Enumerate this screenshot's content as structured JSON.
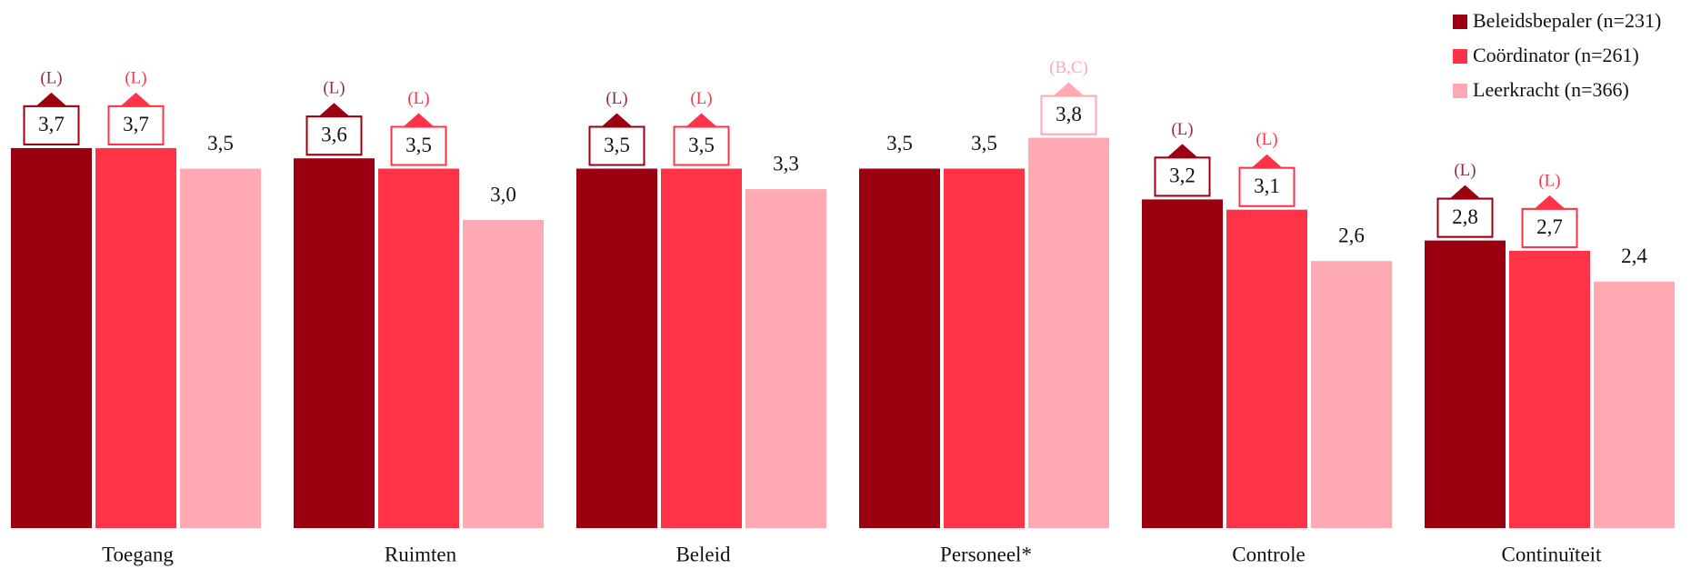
{
  "chart_data": {
    "type": "bar",
    "categories": [
      "Toegang",
      "Ruimten",
      "Beleid",
      "Personeel*",
      "Controle",
      "Continuïteit"
    ],
    "series": [
      {
        "name": "Beleidsbepaler (n=231)",
        "color": "#9b0011",
        "values": [
          3.7,
          3.6,
          3.5,
          3.5,
          3.2,
          2.8
        ],
        "value_labels": [
          "3,7",
          "3,6",
          "3,5",
          "3,5",
          "3,2",
          "2,8"
        ],
        "annotations": [
          "(L)",
          "(L)",
          "(L)",
          null,
          "(L)",
          "(L)"
        ]
      },
      {
        "name": "Coördinator (n=261)",
        "color": "#ff3347",
        "values": [
          3.7,
          3.5,
          3.5,
          3.5,
          3.1,
          2.7
        ],
        "value_labels": [
          "3,7",
          "3,5",
          "3,5",
          "3,5",
          "3,1",
          "2,7"
        ],
        "annotations": [
          "(L)",
          "(L)",
          "(L)",
          null,
          "(L)",
          "(L)"
        ]
      },
      {
        "name": "Leerkracht (n=366)",
        "color": "#ffaab3",
        "values": [
          3.5,
          3.0,
          3.3,
          3.8,
          2.6,
          2.4
        ],
        "value_labels": [
          "3,5",
          "3,0",
          "3,3",
          "3,8",
          "2,6",
          "2,4"
        ],
        "annotations": [
          null,
          null,
          null,
          "(B,C)",
          null,
          null
        ]
      }
    ],
    "ylim": [
      0,
      5
    ],
    "legend": "upper right"
  }
}
